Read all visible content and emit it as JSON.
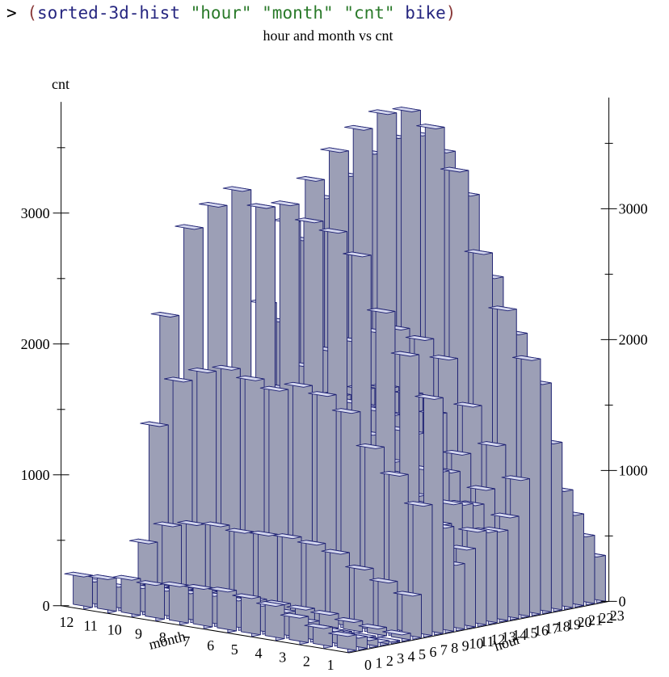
{
  "repl": {
    "prompt": ">",
    "open_paren": "(",
    "func": "sorted-3d-hist",
    "arg1": "\"hour\"",
    "arg2": "\"month\"",
    "arg3": "\"cnt\"",
    "arg4": "bike",
    "close_paren": ")"
  },
  "colors": {
    "bar_top": "#d4d7ee",
    "bar_front": "#c3c6df",
    "bar_side": "#9c9fb6",
    "bar_edge": "#1f2273"
  },
  "chart_data": {
    "type": "bar3d",
    "title": "hour and month vs cnt",
    "xlabel": "hour",
    "ylabel": "month",
    "zlabel": "cnt",
    "zlim": [
      0,
      3700
    ],
    "z_ticks": [
      0,
      1000,
      2000,
      3000
    ],
    "z_tick_labels": [
      "0",
      "1000",
      "2000",
      "3000"
    ],
    "hours": [
      "0",
      "1",
      "2",
      "3",
      "4",
      "5",
      "6",
      "7",
      "8",
      "9",
      "10",
      "11",
      "12",
      "13",
      "14",
      "15",
      "16",
      "17",
      "18",
      "19",
      "20",
      "21",
      "22",
      "23"
    ],
    "months": [
      "12",
      "11",
      "10",
      "9",
      "8",
      "7",
      "6",
      "5",
      "4",
      "3",
      "2",
      "1"
    ],
    "values": [
      [
        245,
        190,
        90,
        40,
        20,
        80,
        400,
        1280,
        2100,
        1000,
        580,
        700,
        820,
        780,
        760,
        820,
        1150,
        2050,
        1900,
        1400,
        1050,
        820,
        620,
        430
      ],
      [
        255,
        180,
        100,
        40,
        20,
        110,
        560,
        1650,
        2800,
        1400,
        800,
        950,
        1080,
        1050,
        1000,
        1120,
        1450,
        2700,
        2550,
        1850,
        1350,
        1050,
        760,
        520
      ],
      [
        280,
        200,
        110,
        45,
        25,
        120,
        600,
        1750,
        3000,
        1500,
        900,
        1050,
        1250,
        1200,
        1150,
        1280,
        1650,
        3050,
        2900,
        2100,
        1500,
        1150,
        850,
        570
      ],
      [
        270,
        210,
        120,
        50,
        25,
        130,
        620,
        1800,
        3150,
        1550,
        950,
        1150,
        1350,
        1300,
        1250,
        1400,
        1800,
        3300,
        3100,
        2350,
        1700,
        1300,
        950,
        640
      ],
      [
        290,
        220,
        130,
        55,
        30,
        125,
        600,
        1750,
        3050,
        1520,
        1000,
        1200,
        1450,
        1400,
        1350,
        1500,
        1900,
        3500,
        3300,
        2550,
        1850,
        1400,
        1050,
        700
      ],
      [
        300,
        230,
        140,
        60,
        30,
        130,
        610,
        1700,
        3100,
        1580,
        1050,
        1250,
        1500,
        1450,
        1420,
        1580,
        2000,
        3650,
        3450,
        2700,
        1950,
        1500,
        1100,
        760
      ],
      [
        310,
        225,
        135,
        58,
        28,
        128,
        620,
        1760,
        3000,
        1620,
        1100,
        1300,
        1550,
        1500,
        1480,
        1620,
        2050,
        3700,
        3500,
        2750,
        2000,
        1550,
        1150,
        790
      ],
      [
        290,
        215,
        125,
        55,
        26,
        120,
        600,
        1720,
        2950,
        1560,
        1080,
        1280,
        1520,
        1470,
        1450,
        1600,
        2000,
        3600,
        3400,
        2650,
        1950,
        1500,
        1120,
        760
      ],
      [
        260,
        195,
        110,
        50,
        24,
        110,
        560,
        1620,
        2800,
        1420,
        980,
        1180,
        1400,
        1360,
        1330,
        1480,
        1880,
        3300,
        3100,
        2400,
        1750,
        1360,
        1000,
        680
      ],
      [
        200,
        150,
        90,
        40,
        20,
        85,
        470,
        1380,
        2400,
        1150,
        780,
        950,
        1130,
        1100,
        1080,
        1200,
        1550,
        2700,
        2500,
        1900,
        1380,
        1080,
        800,
        540
      ],
      [
        150,
        110,
        70,
        30,
        15,
        65,
        400,
        1200,
        2100,
        950,
        620,
        760,
        900,
        880,
        860,
        960,
        1280,
        2300,
        2100,
        1550,
        1100,
        860,
        640,
        430
      ],
      [
        120,
        90,
        55,
        25,
        12,
        50,
        330,
        1000,
        1800,
        800,
        500,
        600,
        720,
        700,
        690,
        780,
        1050,
        1950,
        1750,
        1280,
        900,
        700,
        520,
        350
      ]
    ]
  }
}
